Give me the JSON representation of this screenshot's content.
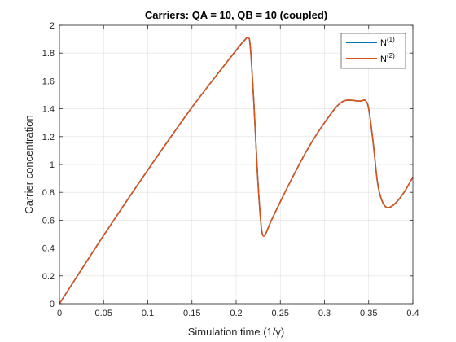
{
  "chart_data": {
    "type": "line",
    "title": "Carriers: QA = 10, QB = 10 (coupled)",
    "xlabel": "Simulation time (1/γ)",
    "ylabel": "Carrier concentration",
    "xlim": [
      0,
      0.4
    ],
    "ylim": [
      0,
      2
    ],
    "x_ticks": [
      0,
      0.05,
      0.1,
      0.15,
      0.2,
      0.25,
      0.3,
      0.35,
      0.4
    ],
    "x_tick_labels": [
      "0",
      "0.05",
      "0.1",
      "0.15",
      "0.2",
      "0.25",
      "0.3",
      "0.35",
      "0.4"
    ],
    "y_ticks": [
      0,
      0.2,
      0.4,
      0.6,
      0.8,
      1,
      1.2,
      1.4,
      1.6,
      1.8,
      2
    ],
    "y_tick_labels": [
      "0",
      "0.2",
      "0.4",
      "0.6",
      "0.8",
      "1",
      "1.2",
      "1.4",
      "1.6",
      "1.8",
      "2"
    ],
    "grid": true,
    "legend_location": "top-right",
    "series": [
      {
        "name": "N(1)",
        "legend_base": "N",
        "legend_sup": "(1)",
        "color": "#0072BD",
        "x": [
          0,
          0.05,
          0.1,
          0.15,
          0.2,
          0.21,
          0.2135,
          0.216,
          0.22,
          0.224,
          0.228,
          0.2305,
          0.234,
          0.24,
          0.26,
          0.28,
          0.3,
          0.32,
          0.34,
          0.346,
          0.35,
          0.355,
          0.36,
          0.365,
          0.371,
          0.38,
          0.39,
          0.4
        ],
        "y": [
          0,
          0.49,
          0.96,
          1.41,
          1.82,
          1.895,
          1.91,
          1.85,
          1.45,
          0.95,
          0.58,
          0.49,
          0.51,
          0.6,
          0.86,
          1.1,
          1.3,
          1.45,
          1.455,
          1.46,
          1.4,
          1.16,
          0.87,
          0.74,
          0.69,
          0.72,
          0.8,
          0.91
        ]
      },
      {
        "name": "N(2)",
        "legend_base": "N",
        "legend_sup": "(2)",
        "color": "#D95319",
        "x": [
          0,
          0.05,
          0.1,
          0.15,
          0.2,
          0.21,
          0.2135,
          0.216,
          0.22,
          0.224,
          0.228,
          0.2305,
          0.234,
          0.24,
          0.26,
          0.28,
          0.3,
          0.32,
          0.34,
          0.346,
          0.35,
          0.355,
          0.36,
          0.365,
          0.371,
          0.38,
          0.39,
          0.4
        ],
        "y": [
          0,
          0.49,
          0.96,
          1.41,
          1.82,
          1.895,
          1.91,
          1.85,
          1.45,
          0.95,
          0.58,
          0.49,
          0.51,
          0.6,
          0.86,
          1.1,
          1.3,
          1.45,
          1.455,
          1.46,
          1.4,
          1.16,
          0.87,
          0.74,
          0.69,
          0.72,
          0.8,
          0.91
        ]
      }
    ]
  }
}
